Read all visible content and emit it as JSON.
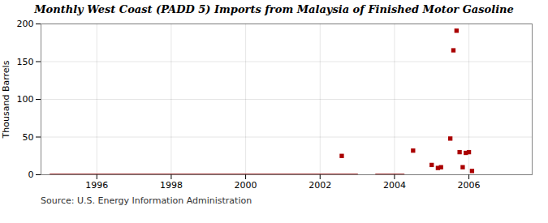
{
  "chart_data": {
    "type": "line",
    "title": "Monthly West Coast (PADD 5) Imports from Malaysia of Finished Motor Gasoline",
    "ylabel": "Thousand Barrels",
    "source": "Source: U.S. Energy Information Administration",
    "xlim": [
      1994.5,
      2007.7
    ],
    "xticks": [
      1996,
      1998,
      2000,
      2002,
      2004,
      2006
    ],
    "ylim": [
      0,
      200
    ],
    "yticks": [
      0,
      50,
      100,
      150,
      200
    ],
    "grid": true,
    "series": [
      {
        "type": "line",
        "color": "#8b0000",
        "x": [
          1994.75,
          2003.0
        ],
        "values": [
          0,
          0
        ]
      },
      {
        "type": "line",
        "color": "#8b0000",
        "x": [
          2003.5,
          2004.25
        ],
        "values": [
          0,
          0
        ]
      },
      {
        "type": "scatter",
        "marker": "square",
        "color": "#aa0000",
        "x": [
          2002.583,
          2004.5,
          2005.0,
          2005.167,
          2005.25,
          2005.5,
          2005.583,
          2005.667,
          2005.75,
          2005.833,
          2005.917,
          2006.0,
          2006.083
        ],
        "values": [
          25,
          32,
          13,
          9,
          10,
          48,
          165,
          191,
          30,
          10,
          29,
          30,
          5
        ]
      }
    ]
  }
}
